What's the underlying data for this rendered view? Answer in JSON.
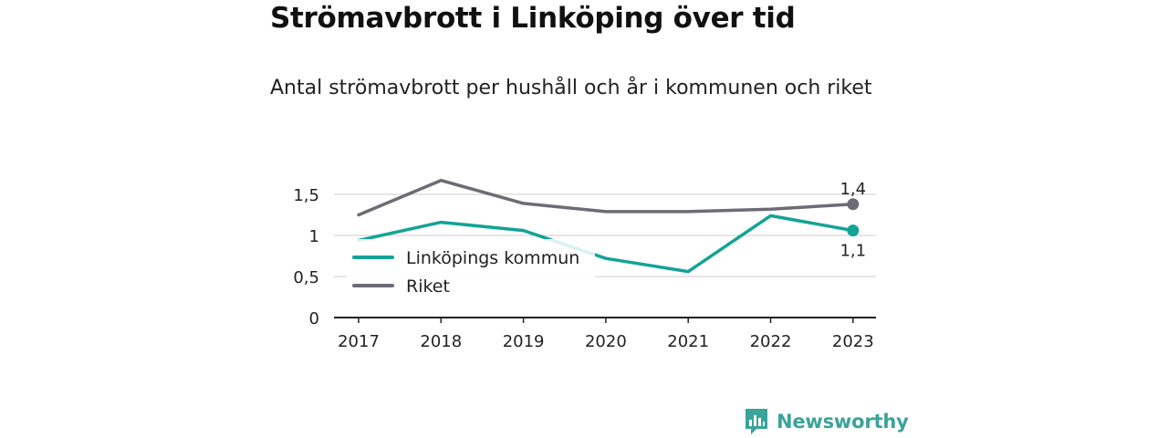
{
  "title": "Strömavbrott i Linköping över tid",
  "subtitle": "Antal strömavbrott per hushåll och år i kommunen och riket",
  "brand": "Newsworthy",
  "colors": {
    "linkoping": "#13a396",
    "riket": "#6d6c74",
    "grid": "#dddddd",
    "axis": "#222222"
  },
  "chart_data": {
    "type": "line",
    "title": "Strömavbrott i Linköping över tid",
    "subtitle": "Antal strömavbrott per hushåll och år i kommunen och riket",
    "x": [
      "2017",
      "2018",
      "2019",
      "2020",
      "2021",
      "2022",
      "2023"
    ],
    "series": [
      {
        "name": "Linköpings kommun",
        "values": [
          0.94,
          1.16,
          1.06,
          0.72,
          0.56,
          1.24,
          1.06
        ],
        "end_label": "1,1"
      },
      {
        "name": "Riket",
        "values": [
          1.25,
          1.67,
          1.39,
          1.29,
          1.29,
          1.32,
          1.38
        ],
        "end_label": "1,4"
      }
    ],
    "yticks": [
      0,
      0.5,
      1,
      1.5
    ],
    "ytick_labels": [
      "0",
      "0,5",
      "1",
      "1,5"
    ],
    "ylim": [
      0,
      1.5
    ],
    "grid": true,
    "legend_position": "bottom-left"
  }
}
